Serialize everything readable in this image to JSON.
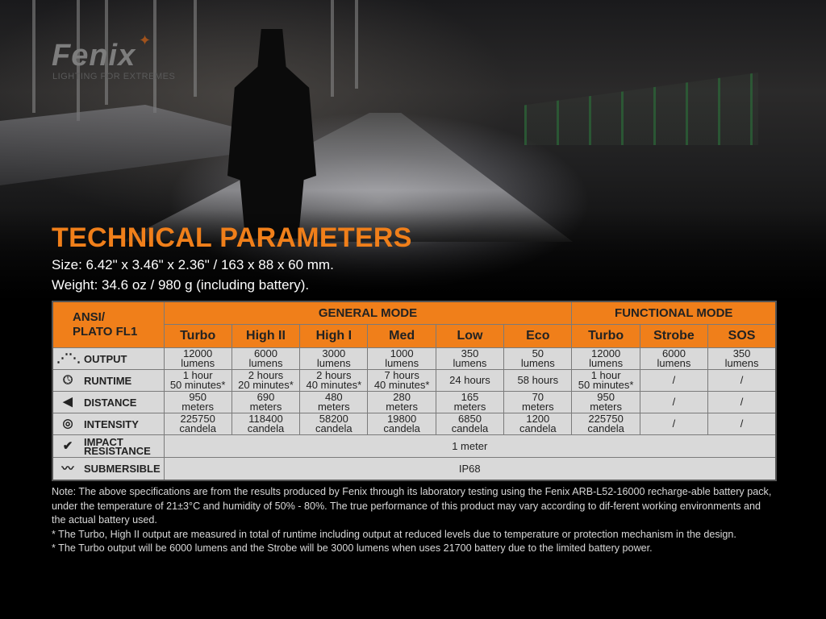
{
  "brand": {
    "logo": "Fenix",
    "tagline": "LIGHTING FOR EXTREMES"
  },
  "title": "TECHNICAL PARAMETERS",
  "size": "Size: 6.42\" x 3.46\" x 2.36\" / 163 x 88 x 60 mm.",
  "weight": "Weight: 34.6 oz / 980 g (including battery).",
  "colors": {
    "accent": "#f07f1a",
    "table_bg": "#d9d9d9"
  },
  "table": {
    "corner": [
      "ANSI/",
      "PLATO FL1"
    ],
    "groups": [
      "GENERAL MODE",
      "FUNCTIONAL MODE"
    ],
    "modes": [
      "Turbo",
      "High II",
      "High I",
      "Med",
      "Low",
      "Eco",
      "Turbo",
      "Strobe",
      "SOS"
    ],
    "rows": [
      {
        "label": "OUTPUT",
        "icon": "output-rays-icon",
        "cells": [
          [
            "12000",
            "lumens"
          ],
          [
            "6000",
            "lumens"
          ],
          [
            "3000",
            "lumens"
          ],
          [
            "1000",
            "lumens"
          ],
          [
            "350",
            "lumens"
          ],
          [
            "50",
            "lumens"
          ],
          [
            "12000",
            "lumens"
          ],
          [
            "6000",
            "lumens"
          ],
          [
            "350",
            "lumens"
          ]
        ]
      },
      {
        "label": "RUNTIME",
        "icon": "clock-icon",
        "cells": [
          [
            "1 hour",
            "50 minutes*"
          ],
          [
            "2 hours",
            "20 minutes*"
          ],
          [
            "2 hours",
            "40 minutes*"
          ],
          [
            "7 hours",
            "40 minutes*"
          ],
          [
            "24 hours"
          ],
          [
            "58 hours"
          ],
          [
            "1 hour",
            "50 minutes*"
          ],
          [
            "/"
          ],
          [
            "/"
          ]
        ]
      },
      {
        "label": "DISTANCE",
        "icon": "distance-beam-icon",
        "cells": [
          [
            "950",
            "meters"
          ],
          [
            "690",
            "meters"
          ],
          [
            "480",
            "meters"
          ],
          [
            "280",
            "meters"
          ],
          [
            "165",
            "meters"
          ],
          [
            "70",
            "meters"
          ],
          [
            "950",
            "meters"
          ],
          [
            "/"
          ],
          [
            "/"
          ]
        ]
      },
      {
        "label": "INTENSITY",
        "icon": "target-icon",
        "cells": [
          [
            "225750",
            "candela"
          ],
          [
            "118400",
            "candela"
          ],
          [
            "58200",
            "candela"
          ],
          [
            "19800",
            "candela"
          ],
          [
            "6850",
            "candela"
          ],
          [
            "1200",
            "candela"
          ],
          [
            "225750",
            "candela"
          ],
          [
            "/"
          ],
          [
            "/"
          ]
        ]
      }
    ],
    "span_rows": [
      {
        "label": [
          "IMPACT",
          "RESISTANCE"
        ],
        "icon": "impact-check-icon",
        "value": "1 meter"
      },
      {
        "label": [
          "SUBMERSIBLE"
        ],
        "icon": "submersible-water-icon",
        "value": "IP68"
      }
    ]
  },
  "notes": [
    "Note: The above specifications are from the results produced by Fenix through its laboratory testing using the Fenix ARB-L52-16000 recharge-able battery pack, under the temperature of 21±3°C and humidity of 50% - 80%. The true performance of this product may vary according to dif-ferent working environments and the actual battery used.",
    "* The Turbo, High II output are measured in total of runtime including output at reduced levels due to temperature or protection mechanism in the design.",
    "* The Turbo output will be 6000 lumens and the Strobe will be 3000 lumens when uses 21700 battery due to the limited battery power."
  ]
}
